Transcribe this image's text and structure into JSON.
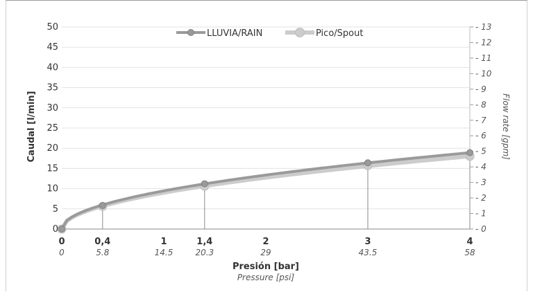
{
  "chart_data": {
    "type": "line",
    "title": "",
    "ylabel": "Caudal [l/min]",
    "y2label": "Flow rate [gpm]",
    "xlabel": "Presión [bar]",
    "x2label": "Pressure [psi]",
    "xlim": [
      0,
      4
    ],
    "ylim": [
      0,
      50
    ],
    "y2lim": [
      0,
      13
    ],
    "x_ticks": [
      {
        "bar": 0,
        "bar_label": "0",
        "psi_label": "0"
      },
      {
        "bar": 0.4,
        "bar_label": "0,4",
        "psi_label": "5.8"
      },
      {
        "bar": 1,
        "bar_label": "1",
        "psi_label": "14.5"
      },
      {
        "bar": 1.4,
        "bar_label": "1,4",
        "psi_label": "20.3"
      },
      {
        "bar": 2,
        "bar_label": "2",
        "psi_label": "29"
      },
      {
        "bar": 3,
        "bar_label": "3",
        "psi_label": "43.5"
      },
      {
        "bar": 4,
        "bar_label": "4",
        "psi_label": "58"
      }
    ],
    "y_ticks": [
      "0",
      "5",
      "10",
      "15",
      "20",
      "25",
      "30",
      "35",
      "40",
      "45",
      "50"
    ],
    "y2_ticks": [
      "0",
      "1",
      "2",
      "3",
      "4",
      "5",
      "6",
      "7",
      "8",
      "9",
      "10",
      "11",
      "12",
      "13"
    ],
    "grid": true,
    "legend_position": "top-center",
    "series": [
      {
        "name": "LLUVIA/RAIN",
        "color": "#9a9a9a",
        "x": [
          0,
          0.4,
          1.4,
          3,
          4
        ],
        "y": [
          0,
          5.8,
          11.2,
          16.4,
          18.9
        ]
      },
      {
        "name": "Pico/Spout",
        "color": "#cccccc",
        "x": [
          0,
          0.4,
          1.4,
          3,
          4
        ],
        "y": [
          0,
          5.6,
          10.6,
          15.7,
          18.0
        ]
      }
    ],
    "marker_lines_at": [
      0.4,
      1.4,
      3,
      4
    ]
  }
}
